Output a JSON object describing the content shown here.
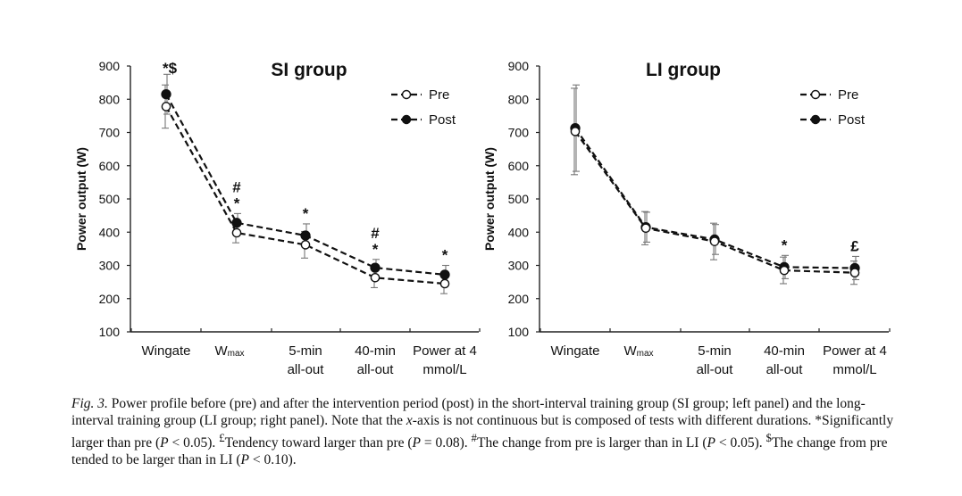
{
  "chart_data": [
    {
      "type": "line",
      "title": "SI group",
      "ylabel": "Power output (W)",
      "ylim": [
        100,
        900
      ],
      "yticks": [
        "100",
        "200",
        "300",
        "400",
        "500",
        "600",
        "700",
        "800",
        "900"
      ],
      "categories": [
        "Wingate",
        "W",
        "5-min all-out",
        "40-min all-out",
        "Power at 4 mmol/L"
      ],
      "category_lines": [
        [
          "Wingate"
        ],
        [
          "W",
          "max"
        ],
        [
          "5-min",
          "all-out"
        ],
        [
          "40-min",
          "all-out"
        ],
        [
          "Power at 4",
          "mmol/L"
        ]
      ],
      "legend": [
        "Pre",
        "Post"
      ],
      "series": [
        {
          "name": "Pre",
          "values": [
            778,
            398,
            362,
            263,
            245
          ],
          "err": [
            65,
            30,
            40,
            30,
            30
          ]
        },
        {
          "name": "Post",
          "values": [
            815,
            428,
            390,
            293,
            272
          ],
          "err": [
            60,
            28,
            35,
            25,
            28
          ]
        }
      ],
      "annotations": [
        [
          "*$"
        ],
        [
          "#",
          "*"
        ],
        [
          "*"
        ],
        [
          "#",
          "*"
        ],
        [
          "*"
        ]
      ]
    },
    {
      "type": "line",
      "title": "LI group",
      "ylabel": "Power output (W)",
      "ylim": [
        100,
        900
      ],
      "yticks": [
        "100",
        "200",
        "300",
        "400",
        "500",
        "600",
        "700",
        "800",
        "900"
      ],
      "categories": [
        "Wingate",
        "W",
        "5-min all-out",
        "40-min all-out",
        "Power at 4 mmol/L"
      ],
      "category_lines": [
        [
          "Wingate"
        ],
        [
          "W",
          "max"
        ],
        [
          "5-min",
          "all-out"
        ],
        [
          "40-min",
          "all-out"
        ],
        [
          "Power at 4",
          "mmol/L"
        ]
      ],
      "legend": [
        "Pre",
        "Post"
      ],
      "series": [
        {
          "name": "Pre",
          "values": [
            703,
            412,
            372,
            285,
            278
          ],
          "err": [
            130,
            50,
            55,
            40,
            35
          ]
        },
        {
          "name": "Post",
          "values": [
            713,
            415,
            378,
            295,
            292
          ],
          "err": [
            130,
            45,
            45,
            35,
            35
          ]
        }
      ],
      "annotations": [
        [],
        [],
        [],
        [
          "*"
        ],
        [
          "£"
        ]
      ]
    }
  ],
  "caption": {
    "label": "Fig. 3.",
    "part1": " Power profile before (pre) and after the intervention period (post) in the short-interval training group (SI group; left panel) and the long-interval training group (LI group; right panel). Note that the ",
    "xaxis_italic": "x",
    "part2": "-axis is not continuous but is composed of tests with different durations. *Significantly larger than pre (",
    "p1": "P",
    "part3": " < 0.05). ",
    "sup_pound": "£",
    "part4": "Tendency toward larger than pre (",
    "p2": "P",
    "part5": " = 0.08). ",
    "sup_hash": "#",
    "part6": "The change from pre is larger than in LI (",
    "p3": "P",
    "part7": " < 0.05). ",
    "sup_dollar": "$",
    "part8": "The change from pre tended to be larger than in LI (",
    "p4": "P",
    "part9": " < 0.10)."
  }
}
